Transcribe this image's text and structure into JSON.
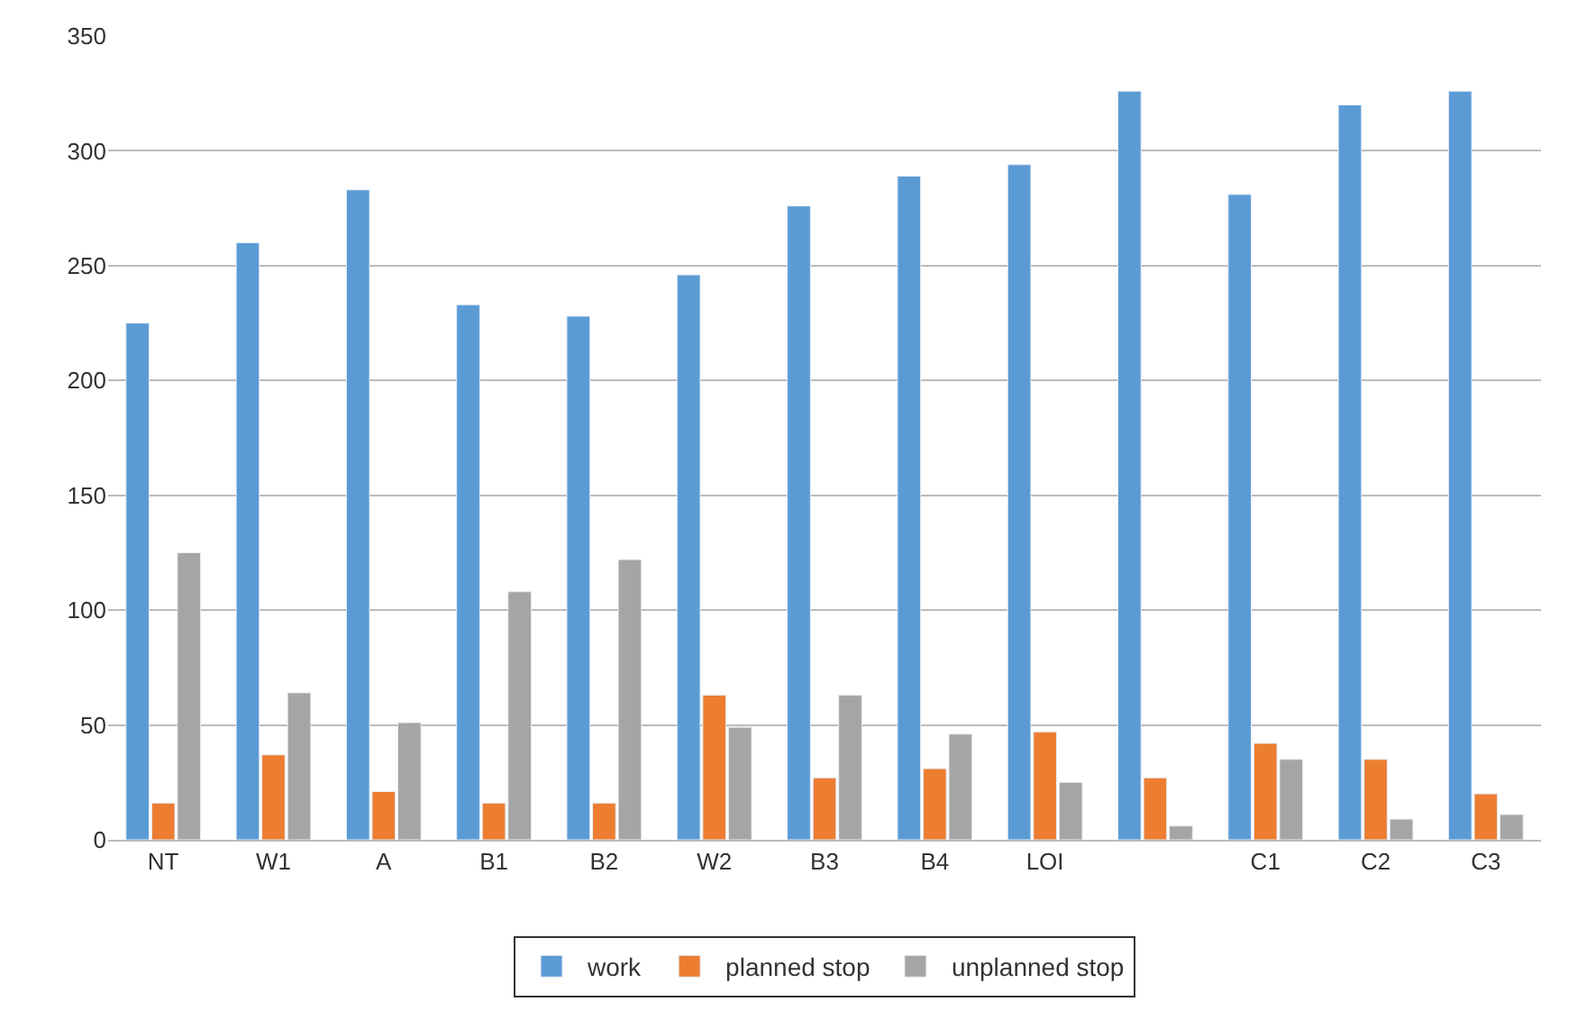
{
  "chart_data": {
    "type": "bar",
    "categories": [
      "NT",
      "W1",
      "A",
      "B1",
      "B2",
      "W2",
      "B3",
      "B4",
      "LOI",
      null,
      "C1",
      "C2",
      "C3"
    ],
    "series": [
      {
        "name": "work",
        "color": "#5b9bd5",
        "values": [
          225,
          260,
          283,
          233,
          228,
          246,
          276,
          289,
          294,
          326,
          281,
          320,
          326
        ]
      },
      {
        "name": "planned stop",
        "color": "#ed7d31",
        "values": [
          16,
          37,
          21,
          16,
          16,
          63,
          27,
          31,
          47,
          27,
          42,
          35,
          20
        ]
      },
      {
        "name": "unplanned stop",
        "color": "#a5a5a5",
        "values": [
          125,
          64,
          51,
          108,
          122,
          49,
          63,
          46,
          25,
          6,
          35,
          9,
          11
        ]
      }
    ],
    "ylim": [
      0,
      350
    ],
    "yticks": [
      0,
      50,
      100,
      150,
      200,
      250,
      300,
      350
    ],
    "grid": "y",
    "legend": "bottom"
  }
}
